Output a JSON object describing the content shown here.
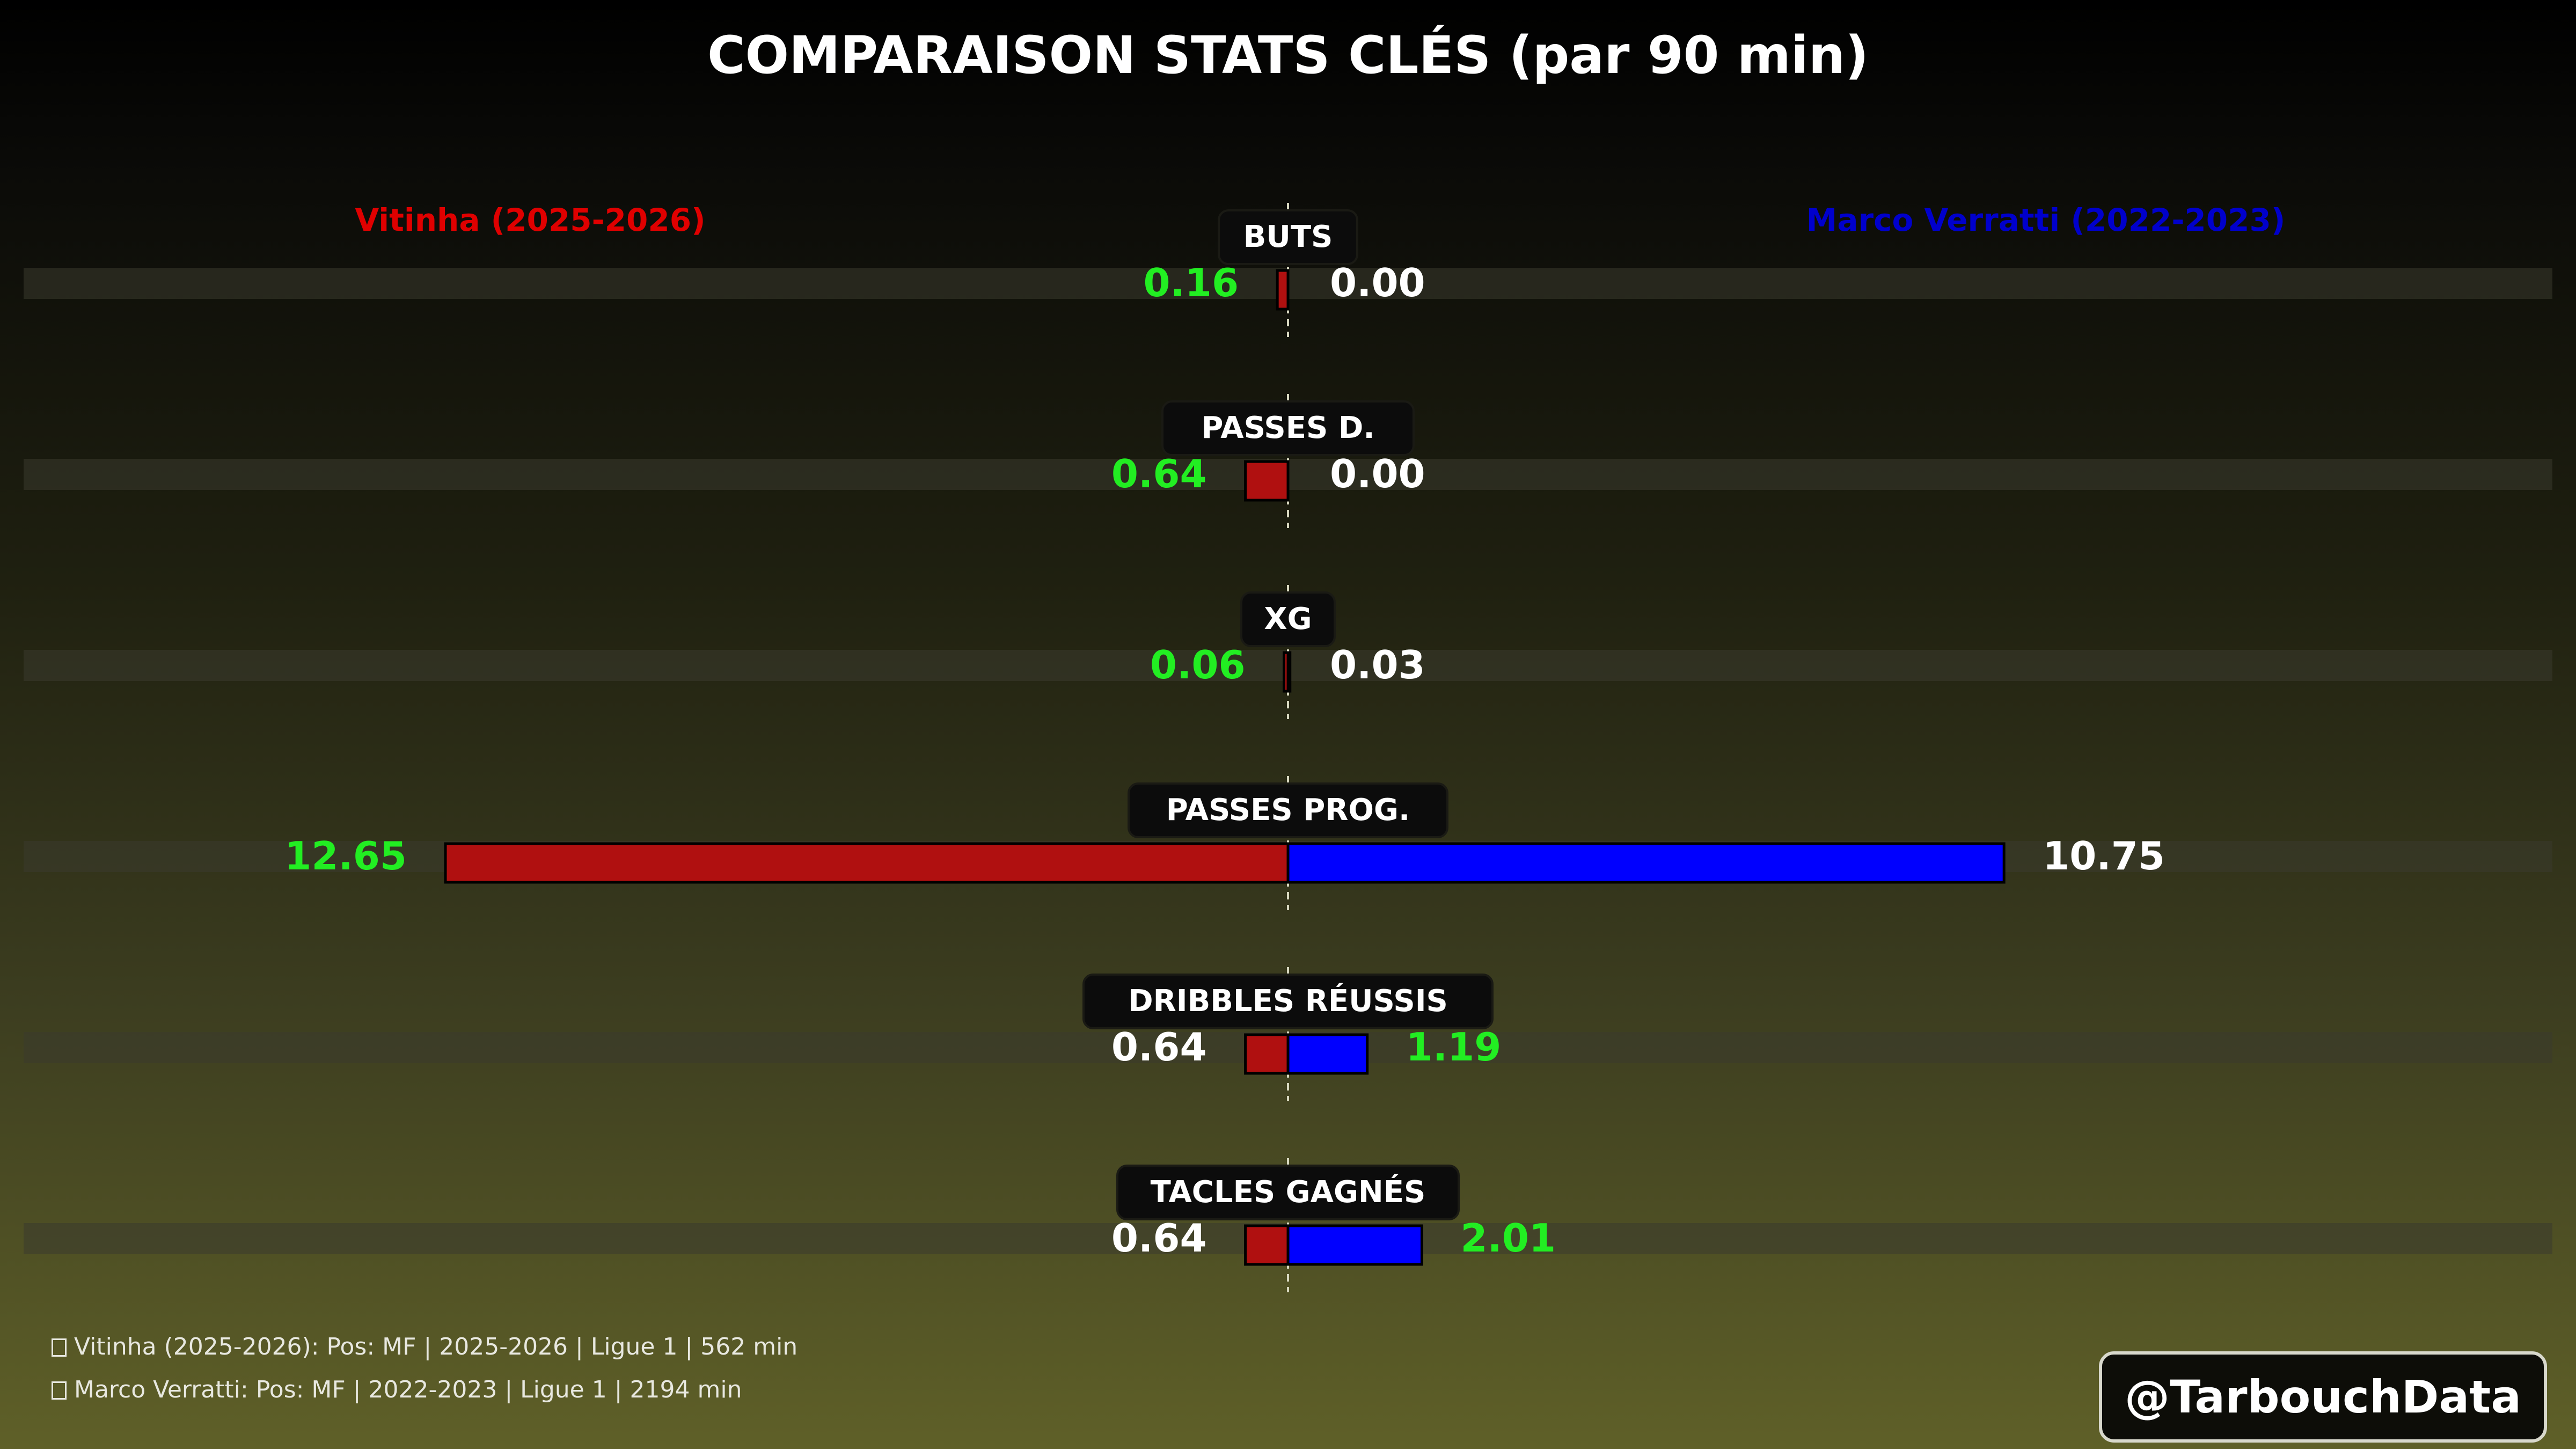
{
  "chart_data": {
    "type": "bar",
    "orientation": "horizontal-diverging",
    "title": "COMPARAISON STATS CLÉS (par 90 min)",
    "series": [
      {
        "name": "Vitinha (2025-2026)",
        "color": "#e00000",
        "bar_color": "#b01010",
        "side": "left"
      },
      {
        "name": "Marco Verratti (2022-2023)",
        "color": "#0000cc",
        "bar_color": "#0000ff",
        "side": "right"
      }
    ],
    "categories": [
      "BUTS",
      "PASSES D.",
      "XG",
      "PASSES PROG.",
      "DRIBBLES RÉUSSIS",
      "TACLES GAGNÉS"
    ],
    "left_values": [
      0.16,
      0.64,
      0.06,
      12.65,
      0.64,
      0.64
    ],
    "right_values": [
      0.0,
      0.0,
      0.03,
      10.75,
      1.19,
      2.01
    ],
    "left_labels": [
      "0.16",
      "0.64",
      "0.06",
      "12.65",
      "0.64",
      "0.64"
    ],
    "right_labels": [
      "0.00",
      "0.00",
      "0.03",
      "10.75",
      "1.19",
      "2.01"
    ],
    "highlight_color": "#22ee22",
    "default_label_color": "#ffffff",
    "grid": false,
    "legend_placement": "top"
  },
  "footer": {
    "line1": "Vitinha (2025-2026): Pos: MF | 2025-2026 | Ligue 1 | 562 min",
    "line2": "Marco Verratti: Pos: MF | 2022-2023 | Ligue 1 | 2194 min"
  },
  "watermark": "@TarbouchData"
}
